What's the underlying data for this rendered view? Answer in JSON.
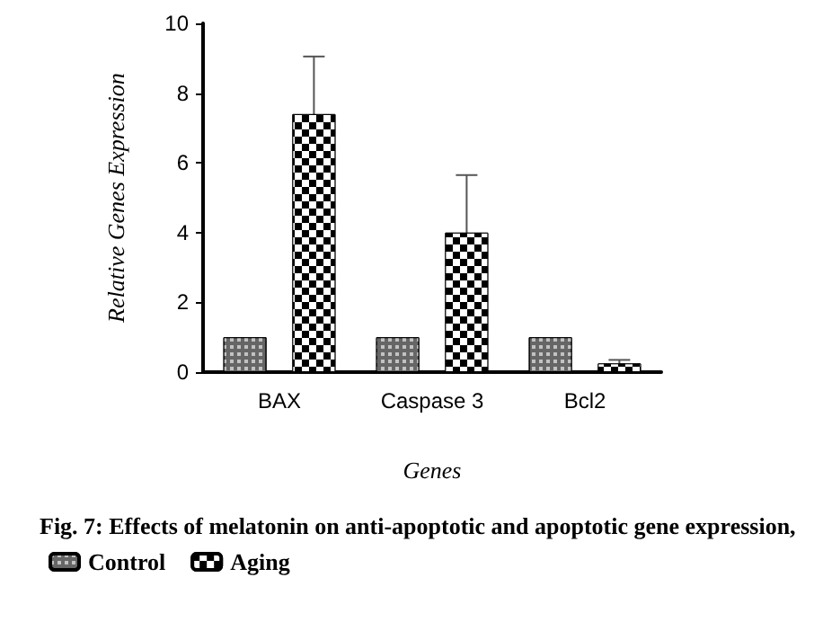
{
  "chart_data": {
    "type": "bar",
    "xlabel": "Genes",
    "ylabel": "Relative Genes Expression",
    "categories": [
      "BAX",
      "Caspase 3",
      "Bcl2"
    ],
    "series": [
      {
        "name": "Control",
        "color": "#666666",
        "values": [
          1,
          1,
          1
        ]
      },
      {
        "name": "Aging",
        "color": "#000000",
        "values": [
          7.4,
          4.0,
          0.25
        ],
        "errors": [
          1.65,
          1.65,
          0.1
        ]
      }
    ],
    "ylim": [
      0,
      10
    ],
    "yticks": [
      0,
      2,
      4,
      6,
      8,
      10
    ],
    "grid": false,
    "legend": "bottom",
    "annotations": [
      "Fig. 7: Effects of melatonin on anti-apoptotic and apoptotic gene expression,"
    ]
  }
}
